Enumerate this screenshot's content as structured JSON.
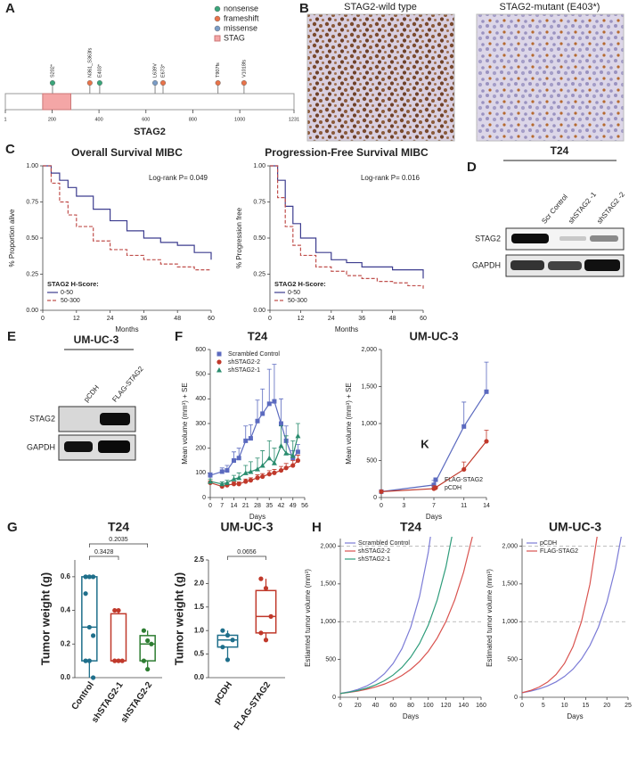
{
  "figure": {
    "panel_labels": [
      "A",
      "B",
      "C",
      "D",
      "E",
      "F",
      "G",
      "H"
    ],
    "ihc": {
      "captions": [
        "STAG2-wild type",
        "STAG2-mutant (E403*)"
      ]
    },
    "blot_d": {
      "title": "T24",
      "lanes": [
        "Scr Control",
        "shSTAG2 -1",
        "shSTAG2 -2"
      ],
      "rows": [
        "STAG2",
        "GAPDH"
      ]
    },
    "blot_e": {
      "title": "UM-UC-3",
      "lanes": [
        "pCDH",
        "FLAG-STAG2"
      ],
      "rows": [
        "STAG2",
        "GAPDH"
      ]
    }
  },
  "chart_data": [
    {
      "type": "lollipop",
      "xlabel": "STAG2",
      "xlim": [
        1,
        1231
      ],
      "xticks": [
        1,
        200,
        400,
        600,
        800,
        1000,
        1231
      ],
      "domain": {
        "name": "STAG",
        "color": "#f4a6a6",
        "start": 160,
        "end": 280
      },
      "series": [
        {
          "name": "nonsense",
          "color": "#3aa57a",
          "x": [
            202,
            403
          ],
          "labels": [
            "S202*",
            "E403*"
          ]
        },
        {
          "name": "frameshift",
          "color": "#e8734a",
          "x": [
            361,
            673,
            907,
            1018
          ],
          "labels": [
            "N361_S363fs",
            "E673*",
            "T907fs",
            "V1018fs"
          ]
        },
        {
          "name": "missense",
          "color": "#7a9cc6",
          "x": [
            639
          ],
          "labels": [
            "L639V"
          ]
        }
      ]
    },
    {
      "type": "line",
      "step": true,
      "title": "Overall Survival MIBC",
      "xlabel": "Months",
      "ylabel": "% Proportion alive",
      "annotation": "Log-rank P= 0.049",
      "annotation_position": "upper right",
      "legend_title": "STAG2 H-Score:",
      "legend": "lower left",
      "x": [
        0,
        3,
        6,
        9,
        12,
        18,
        24,
        30,
        36,
        42,
        48,
        54,
        60
      ],
      "series": [
        {
          "name": "0-50",
          "color": "#3d3d8f",
          "values": [
            1,
            0.95,
            0.9,
            0.85,
            0.79,
            0.7,
            0.62,
            0.55,
            0.5,
            0.47,
            0.45,
            0.4,
            0.35
          ]
        },
        {
          "name": "50-300",
          "color": "#c0504d",
          "dash": true,
          "values": [
            1,
            0.88,
            0.75,
            0.66,
            0.58,
            0.48,
            0.42,
            0.38,
            0.35,
            0.32,
            0.3,
            0.28,
            0.28
          ]
        }
      ],
      "xlim": [
        0,
        60
      ],
      "xticks": [
        0,
        12,
        24,
        36,
        48,
        60
      ],
      "ylim": [
        0,
        1
      ],
      "yticks": [
        {
          "value": 0,
          "label": "0.00"
        },
        {
          "value": 0.25,
          "label": "0.25"
        },
        {
          "value": 0.5,
          "label": "0.50"
        },
        {
          "value": 0.75,
          "label": "0.75"
        },
        {
          "value": 1,
          "label": "1.00"
        }
      ]
    },
    {
      "type": "line",
      "step": true,
      "title": "Progression-Free Survival MIBC",
      "xlabel": "Months",
      "ylabel": "% Progression free",
      "annotation": "Log-rank P= 0.016",
      "annotation_position": "upper right",
      "legend_title": "STAG2 H-Score:",
      "legend": "lower left",
      "x": [
        0,
        3,
        6,
        9,
        12,
        18,
        24,
        30,
        36,
        42,
        48,
        54,
        60
      ],
      "series": [
        {
          "name": "0-50",
          "color": "#3d3d8f",
          "values": [
            1,
            0.9,
            0.72,
            0.6,
            0.5,
            0.4,
            0.35,
            0.33,
            0.3,
            0.3,
            0.28,
            0.28,
            0.22
          ]
        },
        {
          "name": "50-300",
          "color": "#c0504d",
          "dash": true,
          "values": [
            1,
            0.78,
            0.58,
            0.45,
            0.38,
            0.3,
            0.27,
            0.24,
            0.22,
            0.2,
            0.19,
            0.17,
            0.15
          ]
        }
      ],
      "xlim": [
        0,
        60
      ],
      "xticks": [
        0,
        12,
        24,
        36,
        48,
        60
      ],
      "ylim": [
        0,
        1
      ],
      "yticks": [
        {
          "value": 0,
          "label": "0.00"
        },
        {
          "value": 0.25,
          "label": "0.25"
        },
        {
          "value": 0.5,
          "label": "0.50"
        },
        {
          "value": 0.75,
          "label": "0.75"
        },
        {
          "value": 1,
          "label": "1.00"
        }
      ]
    },
    {
      "type": "line",
      "title": "T24",
      "xlabel": "Days",
      "ylabel": "Mean volume (mm³) + SE",
      "legend": "upper left",
      "x": [
        0,
        7,
        10,
        14,
        17,
        21,
        24,
        28,
        31,
        35,
        38,
        42,
        45,
        49,
        52
      ],
      "series": [
        {
          "name": "Scrambled Control",
          "color": "#5b6abf",
          "marker": "square",
          "values": [
            90,
            105,
            110,
            150,
            160,
            230,
            240,
            310,
            340,
            380,
            390,
            300,
            230,
            160,
            185
          ],
          "errors": [
            10,
            15,
            20,
            35,
            40,
            60,
            55,
            85,
            100,
            140,
            150,
            100,
            60,
            30,
            30
          ]
        },
        {
          "name": "shSTAG2-2",
          "color": "#c0392b",
          "marker": "circle",
          "values": [
            60,
            45,
            50,
            55,
            55,
            65,
            70,
            80,
            85,
            95,
            100,
            110,
            120,
            130,
            150
          ],
          "errors": [
            8,
            6,
            6,
            8,
            8,
            10,
            10,
            12,
            12,
            14,
            14,
            16,
            18,
            20,
            22
          ]
        },
        {
          "name": "shSTAG2-1",
          "color": "#2a8c6e",
          "marker": "triangle",
          "values": [
            65,
            55,
            60,
            75,
            80,
            100,
            105,
            115,
            130,
            160,
            140,
            210,
            180,
            170,
            250
          ],
          "errors": [
            10,
            8,
            10,
            15,
            20,
            30,
            40,
            45,
            60,
            70,
            60,
            80,
            70,
            60,
            50
          ]
        }
      ],
      "xlim": [
        0,
        56
      ],
      "xticks": [
        0,
        7,
        14,
        21,
        28,
        35,
        42,
        49,
        56
      ],
      "ylim": [
        0,
        600
      ],
      "yticks": [
        0,
        100,
        200,
        300,
        400,
        500,
        600
      ]
    },
    {
      "type": "line",
      "title": "UM-UC-3",
      "xlabel": "Days",
      "ylabel": "Mean volume (mm³) + SE",
      "legend": "lower right",
      "annotation": "K",
      "annotation_position": "center",
      "x": [
        0,
        7,
        11,
        14
      ],
      "series": [
        {
          "name": "FLAG-STAG2",
          "color": "#5b6abf",
          "marker": "square",
          "values": [
            80,
            170,
            960,
            1430
          ],
          "errors": [
            20,
            60,
            330,
            400
          ]
        },
        {
          "name": "pCDH",
          "color": "#c0392b",
          "marker": "circle",
          "values": [
            80,
            120,
            380,
            760
          ],
          "errors": [
            15,
            40,
            100,
            150
          ]
        }
      ],
      "xlim": [
        0,
        14
      ],
      "xticks": [
        0,
        3,
        7,
        11,
        14
      ],
      "ylim": [
        0,
        2000
      ],
      "yticks": [
        0,
        500,
        {
          "value": 1000,
          "label": "1,000"
        },
        {
          "value": 1500,
          "label": "1,500"
        },
        {
          "value": 2000,
          "label": "2,000"
        }
      ]
    },
    {
      "type": "box",
      "title": "T24",
      "ylabel": "Tumor weight (g)",
      "categories": [
        "Control",
        "shSTAG2-1",
        "shSTAG2-2"
      ],
      "colors": [
        "#1f6f8b",
        "#c0392b",
        "#2e7d32"
      ],
      "boxes": [
        {
          "min": 0,
          "q1": 0.1,
          "median": 0.3,
          "q3": 0.6,
          "max": 0.6,
          "points": [
            0.6,
            0.6,
            0.6,
            0.5,
            0.3,
            0.25,
            0.1,
            0.1,
            0
          ]
        },
        {
          "min": 0.1,
          "q1": 0.1,
          "median": 0.1,
          "q3": 0.38,
          "max": 0.4,
          "points": [
            0.4,
            0.4,
            0.1,
            0.1,
            0.1
          ]
        },
        {
          "min": 0.05,
          "q1": 0.1,
          "median": 0.2,
          "q3": 0.25,
          "max": 0.28,
          "points": [
            0.28,
            0.22,
            0.2,
            0.1,
            0.05
          ]
        }
      ],
      "comparisons": [
        {
          "pair": [
            0,
            1
          ],
          "p": 0.3428
        },
        {
          "pair": [
            0,
            2
          ],
          "p": 0.2035
        }
      ],
      "ylim": [
        0,
        0.7
      ],
      "yticks": [
        {
          "value": 0,
          "label": "0.0"
        },
        0.2,
        0.4,
        0.6
      ]
    },
    {
      "type": "box",
      "title": "UM-UC-3",
      "ylabel": "Tumor weight (g)",
      "categories": [
        "pCDH",
        "FLAG-STAG2"
      ],
      "colors": [
        "#1f6f8b",
        "#c0392b"
      ],
      "boxes": [
        {
          "min": 0.38,
          "q1": 0.65,
          "median": 0.8,
          "q3": 0.9,
          "max": 1.0,
          "points": [
            1.0,
            0.9,
            0.8,
            0.65,
            0.38
          ]
        },
        {
          "min": 0.8,
          "q1": 0.95,
          "median": 1.3,
          "q3": 1.85,
          "max": 2.1,
          "points": [
            2.1,
            1.9,
            1.3,
            0.95,
            0.8
          ]
        }
      ],
      "comparisons": [
        {
          "pair": [
            0,
            1
          ],
          "p": 0.0656
        }
      ],
      "ylim": [
        0,
        2.5
      ],
      "yticks": [
        {
          "value": 0,
          "label": "0.0"
        },
        0.5,
        {
          "value": 1,
          "label": "1.0"
        },
        1.5,
        {
          "value": 2,
          "label": "2.0"
        },
        2.5
      ]
    },
    {
      "type": "line",
      "title": "T24",
      "xlabel": "Days",
      "ylabel": "Estiamted tumor volume (mm³)",
      "legend": "upper left",
      "hlines": [
        1000,
        2000
      ],
      "x": [
        0,
        10,
        20,
        30,
        40,
        50,
        60,
        70,
        80,
        90,
        100,
        110,
        120,
        130,
        140,
        150,
        160
      ],
      "series": [
        {
          "name": "Scrambled Control",
          "color": "#7b7bd6",
          "values": [
            50,
            72,
            104,
            149,
            215,
            310,
            446,
            642,
            925,
            1332,
            1918,
            2760,
            null,
            null,
            null,
            null,
            null
          ]
        },
        {
          "name": "shSTAG2-2",
          "color": "#d9534f",
          "values": [
            50,
            64,
            82,
            106,
            136,
            174,
            224,
            288,
            369,
            473,
            608,
            781,
            1002,
            1287,
            1651,
            2120,
            2714
          ]
        },
        {
          "name": "shSTAG2-1",
          "color": "#2e9c7a",
          "values": [
            50,
            67,
            90,
            121,
            163,
            218,
            294,
            394,
            530,
            711,
            955,
            1283,
            1723,
            2314,
            null,
            null,
            null
          ]
        }
      ],
      "xlim": [
        0,
        160
      ],
      "xticks": [
        0,
        20,
        40,
        60,
        80,
        100,
        120,
        140,
        160
      ],
      "ylim": [
        0,
        2100
      ],
      "yticks": [
        0,
        500,
        {
          "value": 1000,
          "label": "1,000"
        },
        {
          "value": 1500,
          "label": "1,500"
        },
        {
          "value": 2000,
          "label": "2,000"
        }
      ]
    },
    {
      "type": "line",
      "title": "UM-UC-3",
      "xlabel": "Days",
      "ylabel": "Estimated tumor volume (mm³)",
      "legend": "upper left",
      "hlines": [
        1000,
        2000
      ],
      "x": [
        0,
        2,
        4,
        6,
        8,
        10,
        12,
        14,
        16,
        18,
        20,
        22,
        24
      ],
      "series": [
        {
          "name": "pCDH",
          "color": "#7b7bd6",
          "values": [
            60,
            81,
            110,
            150,
            203,
            275,
            372,
            505,
            685,
            928,
            1258,
            1706,
            2311
          ]
        },
        {
          "name": "FLAG-STAG2",
          "color": "#d9534f",
          "values": [
            60,
            90,
            134,
            200,
            300,
            447,
            669,
            1000,
            1496,
            2238,
            null,
            null,
            null
          ]
        }
      ],
      "xlim": [
        0,
        25
      ],
      "xticks": [
        0,
        5,
        10,
        15,
        20,
        25
      ],
      "ylim": [
        0,
        2100
      ],
      "yticks": [
        0,
        500,
        {
          "value": 1000,
          "label": "1,000"
        },
        {
          "value": 1500,
          "label": "1,500"
        },
        {
          "value": 2000,
          "label": "2,000"
        }
      ]
    }
  ]
}
